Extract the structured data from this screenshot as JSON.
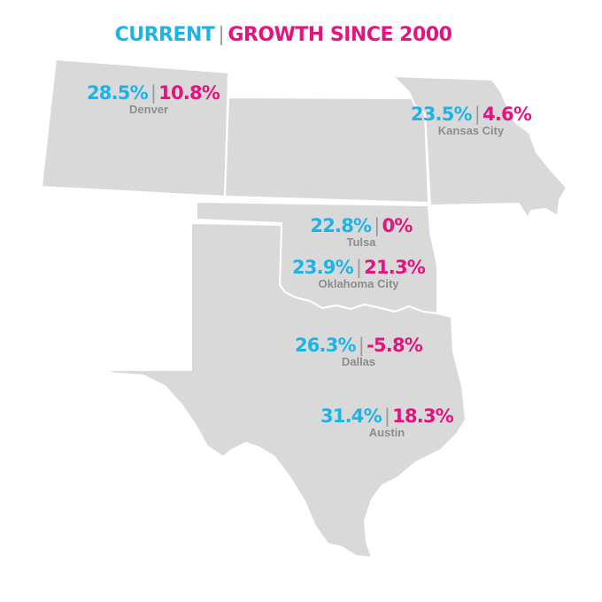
{
  "legend": {
    "current_label": "CURRENT",
    "growth_label": "GROWTH SINCE 2000"
  },
  "colors": {
    "current": "#1eb3e8",
    "growth": "#e4137e",
    "land": "#d9d9da",
    "city": "#8c8c8c"
  },
  "cities": [
    {
      "name": "Denver",
      "current": "28.5%",
      "growth": "10.8%"
    },
    {
      "name": "Kansas City",
      "current": "23.5%",
      "growth": "4.6%"
    },
    {
      "name": "Tulsa",
      "current": "22.8%",
      "growth": "0%"
    },
    {
      "name": "Oklahoma City",
      "current": "23.9%",
      "growth": "21.3%"
    },
    {
      "name": "Dallas",
      "current": "26.3%",
      "growth": "-5.8%"
    },
    {
      "name": "Austin",
      "current": "31.4%",
      "growth": "18.3%"
    }
  ]
}
